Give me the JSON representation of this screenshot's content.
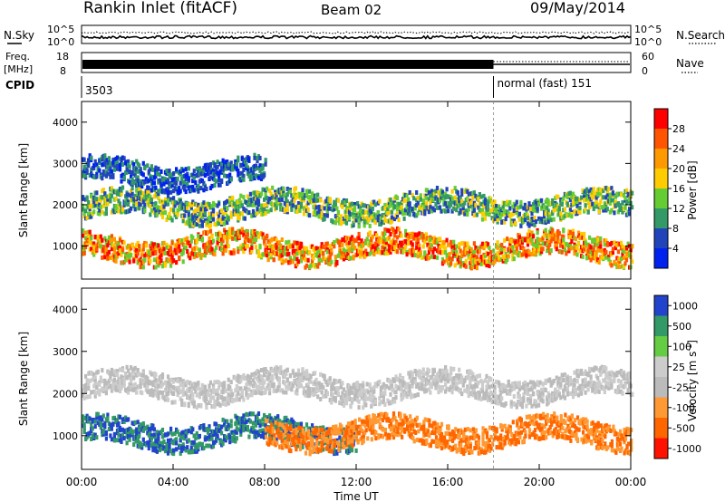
{
  "header": {
    "title": "Rankin Inlet (fitACF)",
    "beam": "Beam 02",
    "date": "09/May/2014"
  },
  "panels": {
    "nsky": {
      "label": "N.Sky",
      "left_ticks": [
        "10^5",
        "10^0"
      ],
      "right_ticks": [
        "10^5",
        "10^0"
      ],
      "right_label": "N.Search"
    },
    "freq": {
      "label1": "Freq.",
      "label2": "[MHz]",
      "left_ticks": [
        "18",
        "8"
      ],
      "right_ticks": [
        "60",
        "0"
      ],
      "right_label": "Nave"
    },
    "cpid": {
      "label": "CPID",
      "segments": [
        "3503",
        "normal (fast) 151"
      ],
      "switch_time_h": 18
    }
  },
  "chart_data": [
    {
      "type": "heatmap",
      "title": "",
      "xlabel": "",
      "ylabel": "Slant Range [km]",
      "xlim_h": [
        0,
        24
      ],
      "ylim": [
        200,
        4500
      ],
      "yticks": [
        1000,
        2000,
        3000,
        4000
      ],
      "colorbar": {
        "label": "Power [dB]",
        "ticks": [
          "28",
          "24",
          "20",
          "16",
          "12",
          "8",
          "4"
        ],
        "colors": [
          "#ff0000",
          "#ff5500",
          "#ff9900",
          "#ffcc00",
          "#66cc33",
          "#339966",
          "#2244bb",
          "#0022ee"
        ]
      },
      "bands": [
        {
          "range_km": [
            1700,
            2300
          ],
          "x_h": [
            0,
            24
          ],
          "level": "mid"
        },
        {
          "range_km": [
            2500,
            3100
          ],
          "x_h": [
            0,
            8
          ],
          "level": "low"
        },
        {
          "range_km": [
            700,
            1300
          ],
          "x_h": [
            0,
            24
          ],
          "level": "high"
        }
      ]
    },
    {
      "type": "heatmap",
      "title": "",
      "xlabel": "Time UT",
      "ylabel": "Slant Range [km]",
      "xlim_h": [
        0,
        24
      ],
      "ylim": [
        200,
        4500
      ],
      "yticks": [
        1000,
        2000,
        3000,
        4000
      ],
      "xticks": [
        "00:00",
        "04:00",
        "08:00",
        "12:00",
        "16:00",
        "20:00",
        "00:00"
      ],
      "colorbar": {
        "label": "Velocity [m s",
        "label_sup": "-1",
        "label_end": "]",
        "ticks": [
          "1000",
          "500",
          "100",
          "25",
          "-25",
          "-100",
          "-500",
          "-1000"
        ],
        "colors": [
          "#2244cc",
          "#339966",
          "#66cc44",
          "#cccccc",
          "#bbbbbb",
          "#ff9933",
          "#ff6600",
          "#ff1100"
        ]
      },
      "bands": [
        {
          "range_km": [
            1900,
            2500
          ],
          "x_h": [
            0,
            24
          ],
          "level": "ground"
        },
        {
          "range_km": [
            800,
            1400
          ],
          "x_h": [
            0,
            12
          ],
          "level": "toward"
        },
        {
          "range_km": [
            800,
            1400
          ],
          "x_h": [
            8,
            24
          ],
          "level": "away"
        }
      ]
    }
  ]
}
